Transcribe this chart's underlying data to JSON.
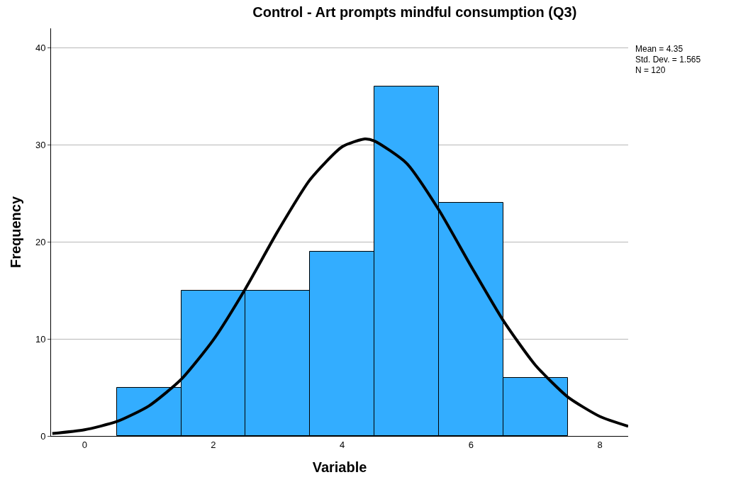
{
  "chart_data": {
    "type": "histogram",
    "title": "Control - Art prompts mindful consumption (Q3)",
    "xlabel": "Variable",
    "ylabel": "Frequency",
    "bins": [
      0.5,
      1.5,
      2.5,
      3.5,
      4.5,
      5.5,
      6.5,
      7.5
    ],
    "series": [
      {
        "color": "#33adff",
        "values": [
          5,
          15,
          15,
          19,
          36,
          24,
          6
        ]
      },
      {
        "type": "line",
        "color": "#000000",
        "x": [
          -0.5,
          0,
          0.5,
          1,
          1.5,
          2,
          2.5,
          3,
          3.5,
          4,
          4.35,
          4.5,
          5,
          5.5,
          6,
          6.5,
          7,
          7.5,
          8,
          8.44
        ],
        "values": [
          0.25,
          0.64,
          1.48,
          3.1,
          5.83,
          9.91,
          15.2,
          21.1,
          26.4,
          29.8,
          30.6,
          30.4,
          28.1,
          23.3,
          17.5,
          11.9,
          7.29,
          4.03,
          2.01,
          1.0
        ]
      }
    ],
    "xlim": [
      -0.52,
      8.44
    ],
    "xticks": [
      0,
      2,
      4,
      6,
      8
    ],
    "ylim": [
      0,
      42
    ],
    "yticks": [
      0,
      10,
      20,
      30,
      40
    ],
    "grid": "y",
    "legend": false,
    "marker": "none",
    "line_style": "solid",
    "annotations": [
      "Mean = 4.35",
      "Std. Dev. = 1.565",
      "N = 120"
    ]
  }
}
